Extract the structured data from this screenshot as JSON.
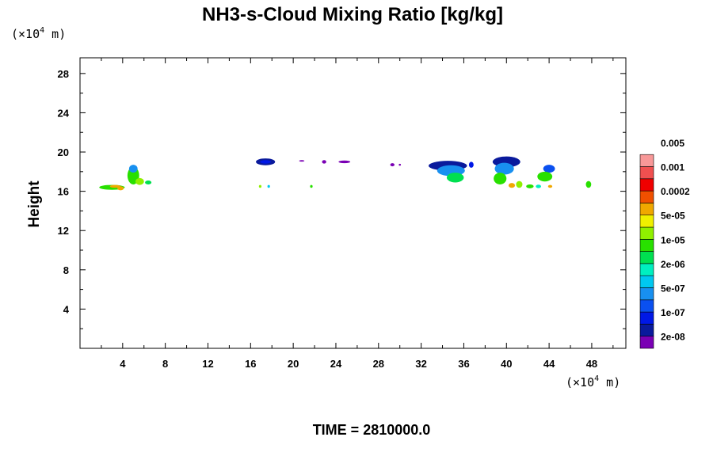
{
  "chart_data": {
    "type": "heatmap",
    "title": "NH3-s-Cloud Mixing Ratio [kg/kg]",
    "ylabel": "Height",
    "x_unit": {
      "prefix": "(×10",
      "exp": "4",
      "suffix": " m)"
    },
    "y_unit": {
      "prefix": "(×10",
      "exp": "4",
      "suffix": " m)"
    },
    "xlim": [
      0,
      51.2
    ],
    "ylim": [
      0,
      29.6
    ],
    "x_ticks": [
      4,
      8,
      12,
      16,
      20,
      24,
      28,
      32,
      36,
      40,
      44,
      48
    ],
    "y_ticks": [
      4,
      8,
      12,
      16,
      20,
      24,
      28
    ],
    "x_tick_labels": [
      "4",
      "8",
      "12",
      "16",
      "20",
      "24",
      "28",
      "32",
      "36",
      "40",
      "44",
      "48"
    ],
    "y_tick_labels": [
      "4",
      "8",
      "12",
      "16",
      "20",
      "24",
      "28"
    ],
    "grid": false,
    "colorbar": {
      "colors": [
        "#7a00b4",
        "#0a1a9c",
        "#0018e6",
        "#0a50f0",
        "#1890f0",
        "#00c8f0",
        "#00f0c0",
        "#00e050",
        "#28e000",
        "#90f000",
        "#f0f000",
        "#f0a800",
        "#f05000",
        "#f00000",
        "#f05050",
        "#f89898"
      ],
      "labels": [
        "2e-08",
        "1e-07",
        "5e-07",
        "2e-06",
        "1e-05",
        "5e-05",
        "0.0002",
        "0.001",
        "0.005"
      ]
    },
    "blobs": [
      {
        "x": 3.0,
        "y": 16.4,
        "rx": 1.2,
        "ry": 0.25,
        "level": 8
      },
      {
        "x": 3.3,
        "y": 16.5,
        "rx": 0.5,
        "ry": 0.15,
        "level": 11
      },
      {
        "x": 3.8,
        "y": 16.3,
        "rx": 0.3,
        "ry": 0.2,
        "level": 11
      },
      {
        "x": 5.0,
        "y": 17.6,
        "rx": 0.55,
        "ry": 0.9,
        "level": 8
      },
      {
        "x": 5.0,
        "y": 18.3,
        "rx": 0.4,
        "ry": 0.4,
        "level": 4
      },
      {
        "x": 5.6,
        "y": 17.0,
        "rx": 0.4,
        "ry": 0.35,
        "level": 9
      },
      {
        "x": 6.4,
        "y": 16.9,
        "rx": 0.3,
        "ry": 0.2,
        "level": 7
      },
      {
        "x": 17.4,
        "y": 19.0,
        "rx": 0.9,
        "ry": 0.35,
        "level": 1
      },
      {
        "x": 17.4,
        "y": 19.0,
        "rx": 0.5,
        "ry": 0.18,
        "level": 2
      },
      {
        "x": 20.8,
        "y": 19.1,
        "rx": 0.25,
        "ry": 0.08,
        "level": 0
      },
      {
        "x": 22.9,
        "y": 19.0,
        "rx": 0.2,
        "ry": 0.18,
        "level": 0
      },
      {
        "x": 24.8,
        "y": 19.0,
        "rx": 0.55,
        "ry": 0.14,
        "level": 0
      },
      {
        "x": 29.3,
        "y": 18.7,
        "rx": 0.2,
        "ry": 0.16,
        "level": 0
      },
      {
        "x": 30.0,
        "y": 18.7,
        "rx": 0.1,
        "ry": 0.1,
        "level": 0
      },
      {
        "x": 16.9,
        "y": 16.5,
        "rx": 0.12,
        "ry": 0.15,
        "level": 9
      },
      {
        "x": 17.7,
        "y": 16.5,
        "rx": 0.12,
        "ry": 0.15,
        "level": 5
      },
      {
        "x": 21.7,
        "y": 16.5,
        "rx": 0.12,
        "ry": 0.15,
        "level": 8
      },
      {
        "x": 34.5,
        "y": 18.6,
        "rx": 1.8,
        "ry": 0.5,
        "level": 1
      },
      {
        "x": 34.8,
        "y": 18.1,
        "rx": 1.3,
        "ry": 0.55,
        "level": 4
      },
      {
        "x": 35.2,
        "y": 17.4,
        "rx": 0.8,
        "ry": 0.5,
        "level": 7
      },
      {
        "x": 36.7,
        "y": 18.7,
        "rx": 0.22,
        "ry": 0.3,
        "level": 2
      },
      {
        "x": 40.0,
        "y": 19.0,
        "rx": 1.3,
        "ry": 0.55,
        "level": 1
      },
      {
        "x": 39.8,
        "y": 18.3,
        "rx": 0.9,
        "ry": 0.6,
        "level": 4
      },
      {
        "x": 39.4,
        "y": 17.3,
        "rx": 0.6,
        "ry": 0.6,
        "level": 8
      },
      {
        "x": 40.5,
        "y": 16.6,
        "rx": 0.3,
        "ry": 0.25,
        "level": 11
      },
      {
        "x": 41.2,
        "y": 16.7,
        "rx": 0.3,
        "ry": 0.35,
        "level": 9
      },
      {
        "x": 42.2,
        "y": 16.5,
        "rx": 0.35,
        "ry": 0.2,
        "level": 8
      },
      {
        "x": 44.0,
        "y": 18.3,
        "rx": 0.55,
        "ry": 0.4,
        "level": 3
      },
      {
        "x": 43.6,
        "y": 17.5,
        "rx": 0.7,
        "ry": 0.5,
        "level": 8
      },
      {
        "x": 43.0,
        "y": 16.5,
        "rx": 0.25,
        "ry": 0.18,
        "level": 6
      },
      {
        "x": 44.1,
        "y": 16.5,
        "rx": 0.2,
        "ry": 0.15,
        "level": 11
      },
      {
        "x": 47.7,
        "y": 16.7,
        "rx": 0.25,
        "ry": 0.35,
        "level": 8
      }
    ]
  },
  "footer": {
    "time_label": "TIME = 2810000.0"
  }
}
